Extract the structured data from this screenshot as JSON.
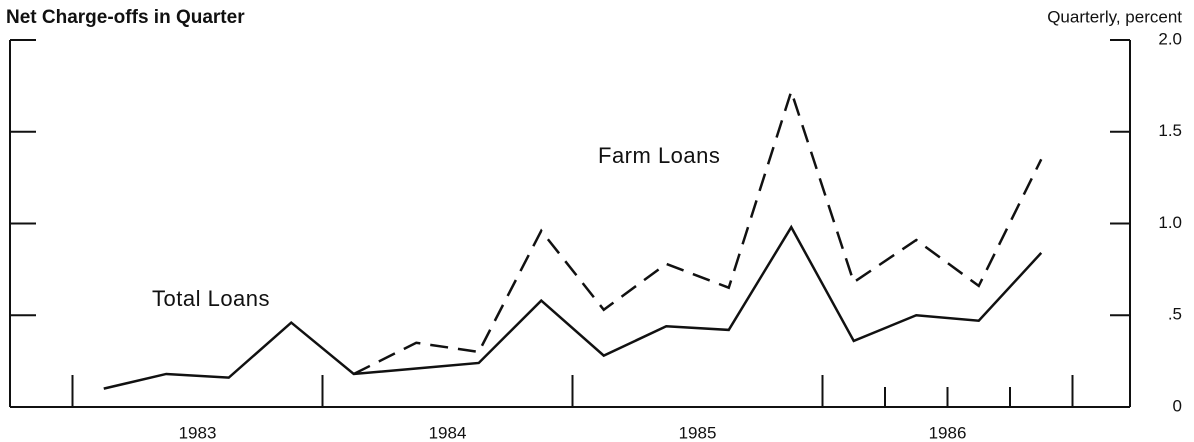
{
  "chart_data": {
    "type": "line",
    "title": "Net Charge-offs in Quarter",
    "y_axis_label": "Quarterly, percent",
    "x": [
      1983.125,
      1983.375,
      1983.625,
      1983.875,
      1984.125,
      1984.375,
      1984.625,
      1984.875,
      1985.125,
      1985.375,
      1985.625,
      1985.875,
      1986.125,
      1986.375,
      1986.625,
      1986.875
    ],
    "series": [
      {
        "name": "Total Loans",
        "color": "#111111",
        "dash": "solid",
        "values": [
          0.1,
          0.18,
          0.16,
          0.46,
          0.18,
          0.21,
          0.24,
          0.58,
          0.28,
          0.44,
          0.42,
          0.98,
          0.36,
          0.5,
          0.47,
          0.84
        ]
      },
      {
        "name": "Farm Loans",
        "color": "#111111",
        "dash": "dashed",
        "values": [
          null,
          null,
          null,
          null,
          0.18,
          0.35,
          0.3,
          0.96,
          0.53,
          0.78,
          0.65,
          1.72,
          0.68,
          0.91,
          0.66,
          1.35
        ]
      }
    ],
    "xlim": [
      1982.75,
      1987.23
    ],
    "xticks": [
      {
        "value": 1983.5,
        "label": "1983"
      },
      {
        "value": 1984.5,
        "label": "1984"
      },
      {
        "value": 1985.5,
        "label": "1985"
      },
      {
        "value": 1986.5,
        "label": "1986"
      }
    ],
    "x_major_tick_marks": [
      1983,
      1984,
      1985,
      1986,
      1987
    ],
    "x_minor_tick_marks": [
      1986.25,
      1986.5,
      1986.75
    ],
    "ylim": [
      0,
      2
    ],
    "yticks": [
      0,
      {
        "value": 0.5,
        "label": ".5"
      },
      {
        "value": 1,
        "label": "1.0"
      },
      {
        "value": 1.5,
        "label": "1.5"
      },
      {
        "value": 2,
        "label": "2.0"
      }
    ],
    "y_axis_side": "right",
    "series_labels": [
      {
        "text": "Total Loans",
        "series": 0
      },
      {
        "text": "Farm Loans",
        "series": 1
      }
    ]
  }
}
